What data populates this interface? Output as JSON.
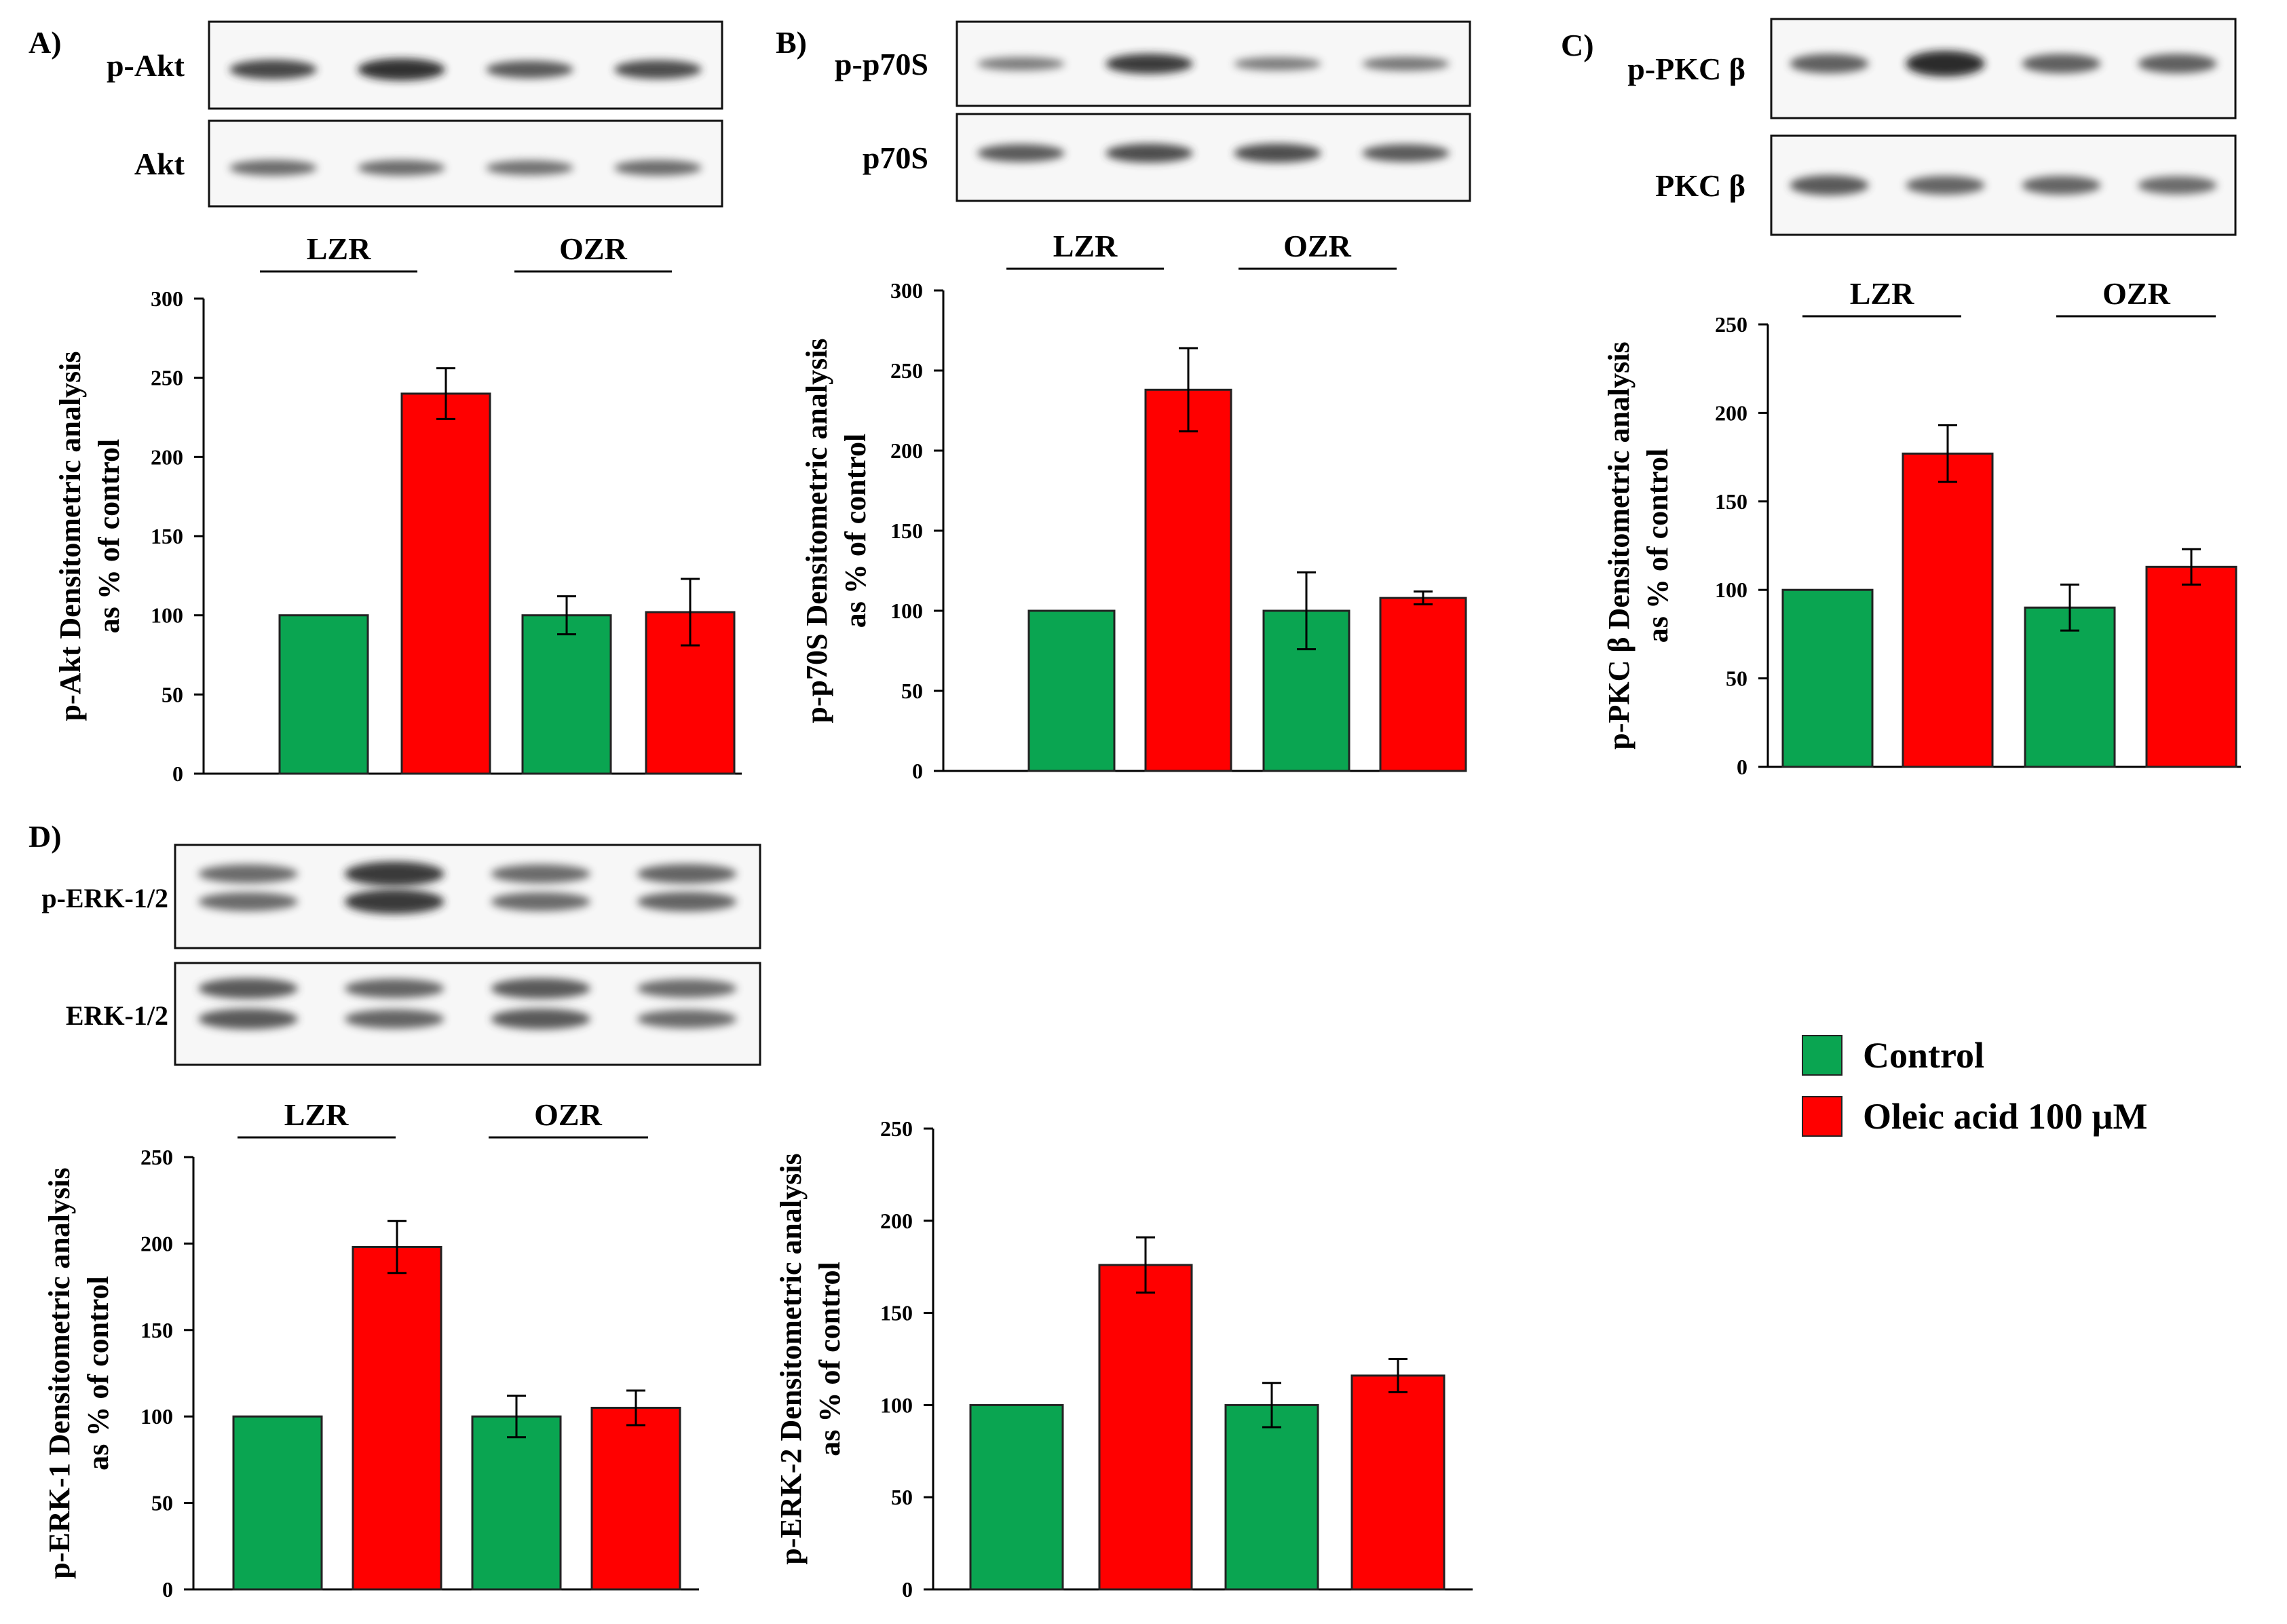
{
  "colors": {
    "control": "#0aa551",
    "oleic": "#ff0000",
    "bar_stroke": "#222222"
  },
  "legend": [
    {
      "label": "Control",
      "color": "#0aa551"
    },
    {
      "label": "Oleic acid 100 µM",
      "color": "#ff0000"
    }
  ],
  "chart_data": [
    {
      "type": "bar",
      "panel_label": "A)",
      "blot_labels": [
        "p-Akt",
        "Akt"
      ],
      "group_labels": [
        "LZR",
        "OZR"
      ],
      "ylabel_line1": "p-Akt Densitometric analysis",
      "ylabel_line2": "as % of control",
      "ylim": [
        0,
        300
      ],
      "yticks": [
        0,
        50,
        100,
        150,
        200,
        250,
        300
      ],
      "categories": [
        "LZR Control",
        "LZR Oleic acid",
        "OZR Control",
        "OZR Oleic acid"
      ],
      "values": [
        100,
        240,
        100,
        102
      ],
      "errors": [
        0,
        16,
        12,
        21
      ]
    },
    {
      "type": "bar",
      "panel_label": "B)",
      "blot_labels": [
        "p-p70S",
        "p70S"
      ],
      "group_labels": [
        "LZR",
        "OZR"
      ],
      "ylabel_line1": "p-p70S Densitometric analysis",
      "ylabel_line2": "as % of control",
      "ylim": [
        0,
        300
      ],
      "yticks": [
        0,
        50,
        100,
        150,
        200,
        250,
        300
      ],
      "categories": [
        "LZR Control",
        "LZR Oleic acid",
        "OZR Control",
        "OZR Oleic acid"
      ],
      "values": [
        100,
        238,
        100,
        108
      ],
      "errors": [
        0,
        26,
        24,
        4
      ]
    },
    {
      "type": "bar",
      "panel_label": "C)",
      "blot_labels": [
        "p-PKC β",
        "PKC β"
      ],
      "group_labels": [
        "LZR",
        "OZR"
      ],
      "ylabel_line1": "p-PKC β Densitometric analysis",
      "ylabel_line2": "as % of control",
      "ylim": [
        0,
        250
      ],
      "yticks": [
        0,
        50,
        100,
        150,
        200,
        250
      ],
      "categories": [
        "LZR Control",
        "LZR Oleic acid",
        "OZR Control",
        "OZR Oleic acid"
      ],
      "values": [
        100,
        177,
        90,
        113
      ],
      "errors": [
        0,
        16,
        13,
        10
      ]
    },
    {
      "type": "bar",
      "panel_label": "D)",
      "blot_labels": [
        "p-ERK-1/2",
        "ERK-1/2"
      ],
      "group_labels": [
        "LZR",
        "OZR"
      ],
      "ylabel_line1": "p-ERK-1 Densitometric analysis",
      "ylabel_line2": "as % of control",
      "ylim": [
        0,
        250
      ],
      "yticks": [
        0,
        50,
        100,
        150,
        200,
        250
      ],
      "categories": [
        "LZR Control",
        "LZR Oleic acid",
        "OZR Control",
        "OZR Oleic acid"
      ],
      "values": [
        100,
        198,
        100,
        105
      ],
      "errors": [
        0,
        15,
        12,
        10
      ]
    },
    {
      "type": "bar",
      "panel_label": "",
      "blot_labels": [],
      "group_labels": [],
      "ylabel_line1": "p-ERK-2 Densitometric analysis",
      "ylabel_line2": "as % of control",
      "ylim": [
        0,
        250
      ],
      "yticks": [
        0,
        50,
        100,
        150,
        200,
        250
      ],
      "categories": [
        "LZR Control",
        "LZR Oleic acid",
        "OZR Control",
        "OZR Oleic acid"
      ],
      "values": [
        100,
        176,
        100,
        116
      ],
      "errors": [
        0,
        15,
        12,
        9
      ]
    }
  ]
}
